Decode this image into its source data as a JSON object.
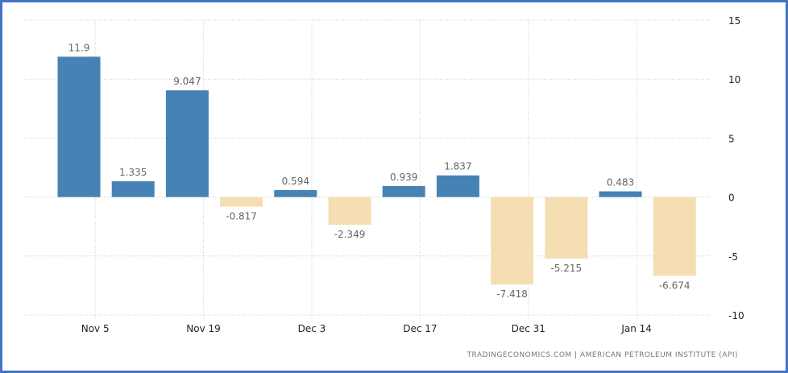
{
  "chart_data": {
    "type": "bar",
    "title": "",
    "xlabel": "",
    "ylabel": "",
    "ylim": [
      -10,
      15
    ],
    "yticks": [
      15,
      10,
      5,
      0,
      -5,
      -10
    ],
    "xticks": [
      "Nov 5",
      "Nov 19",
      "Dec 3",
      "Dec 17",
      "Dec 31",
      "Jan 14"
    ],
    "values": [
      11.9,
      1.335,
      9.047,
      -0.817,
      0.594,
      -2.349,
      0.939,
      1.837,
      -7.418,
      -5.215,
      0.483,
      -6.674
    ],
    "value_labels": [
      "11.9",
      "1.335",
      "9.047",
      "-0.817",
      "0.594",
      "-2.349",
      "0.939",
      "1.837",
      "-7.418",
      "-5.215",
      "0.483",
      "-6.674"
    ],
    "grid": true,
    "colors": {
      "positive": "#4682b4",
      "negative": "#f5deb3",
      "frame": "#4472c4"
    },
    "source": "TRADINGECONOMICS.COM  |  AMERICAN PETROLEUM INSTITUTE (API)"
  }
}
